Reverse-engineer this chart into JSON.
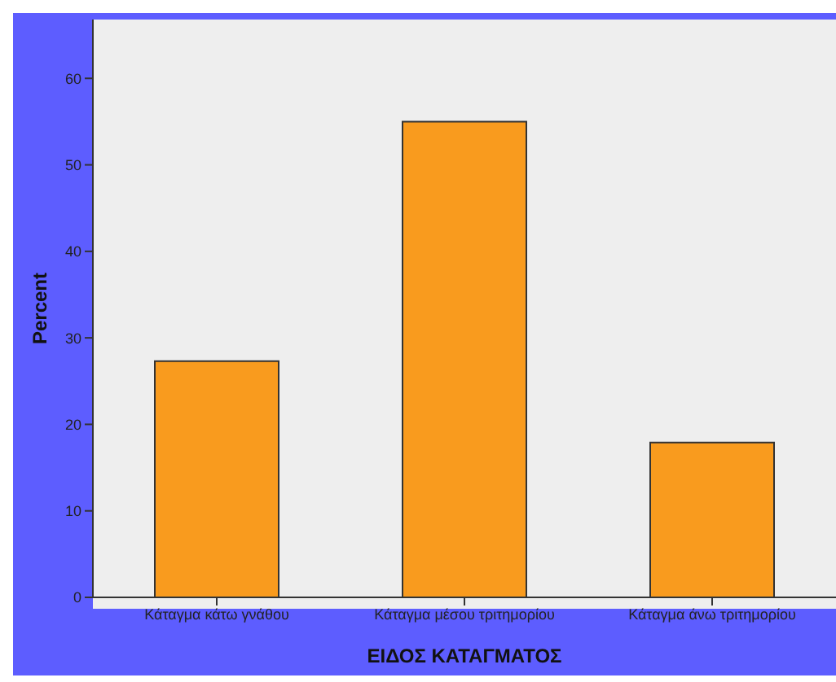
{
  "chart_data": {
    "type": "bar",
    "categories": [
      "Κάταγμα κάτω γνάθου",
      "Κάταγμα μέσου τριτημορίου",
      "Κάταγμα άνω τριτημορίου"
    ],
    "values": [
      27.3,
      55.0,
      17.9
    ],
    "color": "#f99b1e",
    "xlabel": "ΕΙΔΟΣ ΚΑΤΑΓΜΑΤΟΣ",
    "ylabel": "Percent",
    "ylim": [
      0,
      66.8
    ],
    "yticks": [
      0,
      10,
      20,
      30,
      40,
      50,
      60
    ],
    "grid": false
  }
}
